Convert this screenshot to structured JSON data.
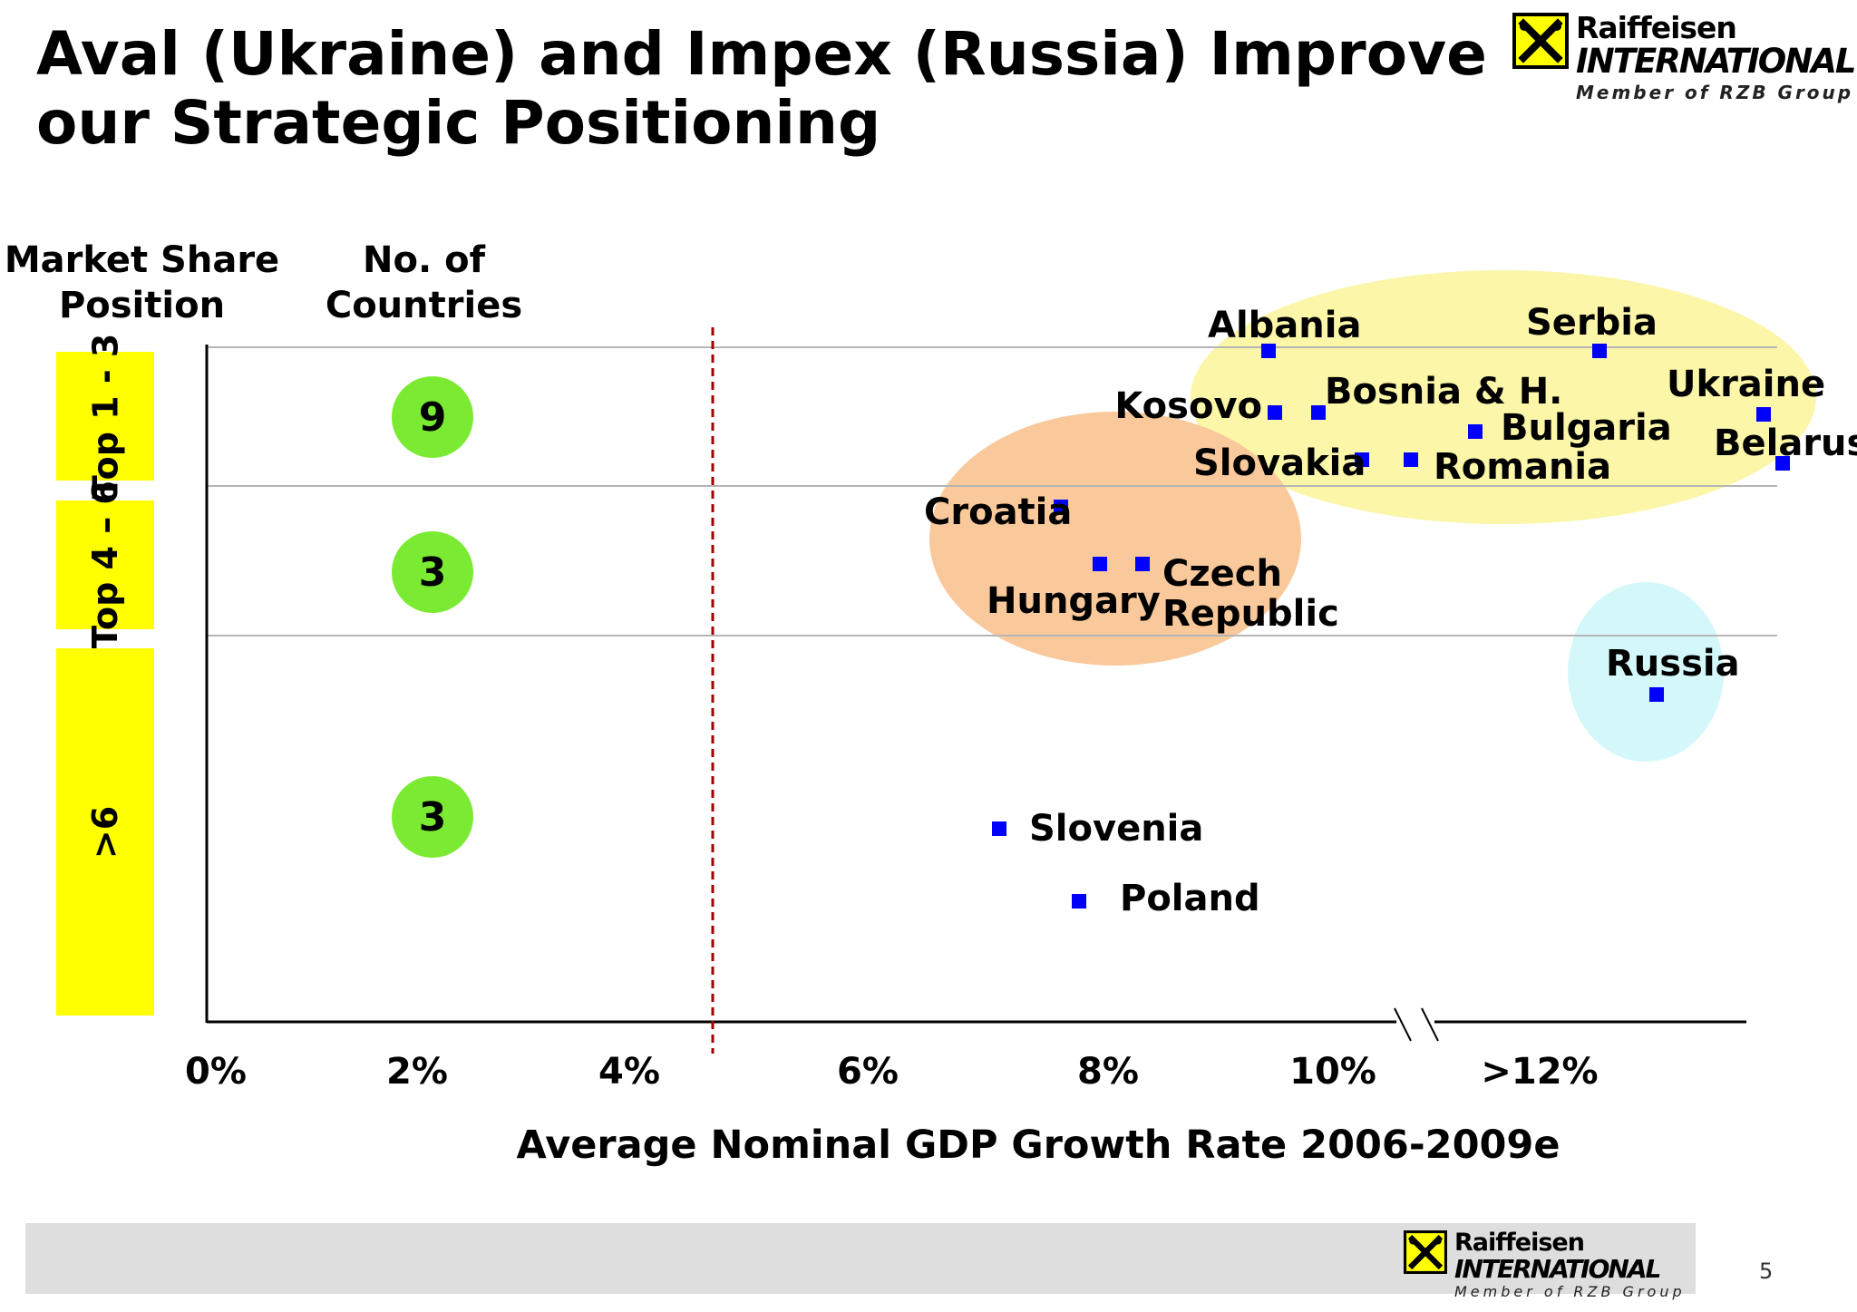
{
  "slide": {
    "title": "Aval (Ukraine) and Impex (Russia) Improve our Strategic Positioning",
    "page_number": "5"
  },
  "logo": {
    "name": "Raiffeisen",
    "sub": "INTERNATIONAL",
    "tagline": "Member of RZB Group",
    "box_color": "#ffff00",
    "icon": "crossed-horses-icon"
  },
  "columns": {
    "market_share": "Market Share Position",
    "count": "No. of Countries"
  },
  "bands": [
    {
      "label": "Top 1 - 3",
      "count": "9"
    },
    {
      "label": "Top 4 – 6",
      "count": "3"
    },
    {
      "label": ">6",
      "count": "3"
    }
  ],
  "colors": {
    "band": "#ffff00",
    "count_circle": "#7aeb32",
    "marker": "#0000ff",
    "cluster_yellow": "#fbf6a8",
    "cluster_orange": "#f9c89b",
    "cluster_cyan": "#d4f8fa",
    "threshold_line": "#a00000"
  },
  "chart_data": {
    "type": "scatter",
    "xlabel": "Average Nominal GDP Growth Rate 2006-2009e",
    "ylabel": "Market Share Position",
    "x_ticks": [
      "0%",
      "2%",
      "4%",
      "6%",
      "8%",
      "10%",
      ">12%"
    ],
    "x_axis_break": "between 10% and >12%",
    "categories": [
      "Top 1 - 3",
      "Top 4 – 6",
      ">6"
    ],
    "threshold_x": "4.7%",
    "points": [
      {
        "label": "Albania",
        "x": 9.4,
        "band": "Top 1 - 3"
      },
      {
        "label": "Serbia",
        "x": 12.6,
        "band": "Top 1 - 3"
      },
      {
        "label": "Kosovo",
        "x": 9.4,
        "band": "Top 1 - 3"
      },
      {
        "label": "Bosnia & H.",
        "x": 9.8,
        "band": "Top 1 - 3"
      },
      {
        "label": "Ukraine",
        "x": 14.2,
        "band": "Top 1 - 3"
      },
      {
        "label": "Bulgaria",
        "x": 11.2,
        "band": "Top 1 - 3"
      },
      {
        "label": "Belarus",
        "x": 14.4,
        "band": "Top 1 - 3"
      },
      {
        "label": "Slovakia",
        "x": 10.2,
        "band": "Top 1 - 3"
      },
      {
        "label": "Romania",
        "x": 10.7,
        "band": "Top 1 - 3"
      },
      {
        "label": "Croatia",
        "x": 7.5,
        "band": "Top 4 – 6"
      },
      {
        "label": "Hungary",
        "x": 7.9,
        "band": "Top 4 – 6"
      },
      {
        "label": "Czech Republic",
        "x": 8.3,
        "band": "Top 4 – 6"
      },
      {
        "label": "Russia",
        "x": 13.3,
        "band": ">6"
      },
      {
        "label": "Slovenia",
        "x": 7.0,
        "band": ">6"
      },
      {
        "label": "Poland",
        "x": 7.7,
        "band": ">6"
      }
    ],
    "clusters": [
      {
        "color": "#fbf6a8",
        "members": [
          "Albania",
          "Serbia",
          "Kosovo",
          "Bosnia & H.",
          "Ukraine",
          "Bulgaria",
          "Belarus",
          "Slovakia",
          "Romania"
        ]
      },
      {
        "color": "#f9c89b",
        "members": [
          "Croatia",
          "Hungary",
          "Czech Republic"
        ]
      },
      {
        "color": "#d4f8fa",
        "members": [
          "Russia"
        ]
      }
    ],
    "grid": true,
    "legend": "none"
  }
}
